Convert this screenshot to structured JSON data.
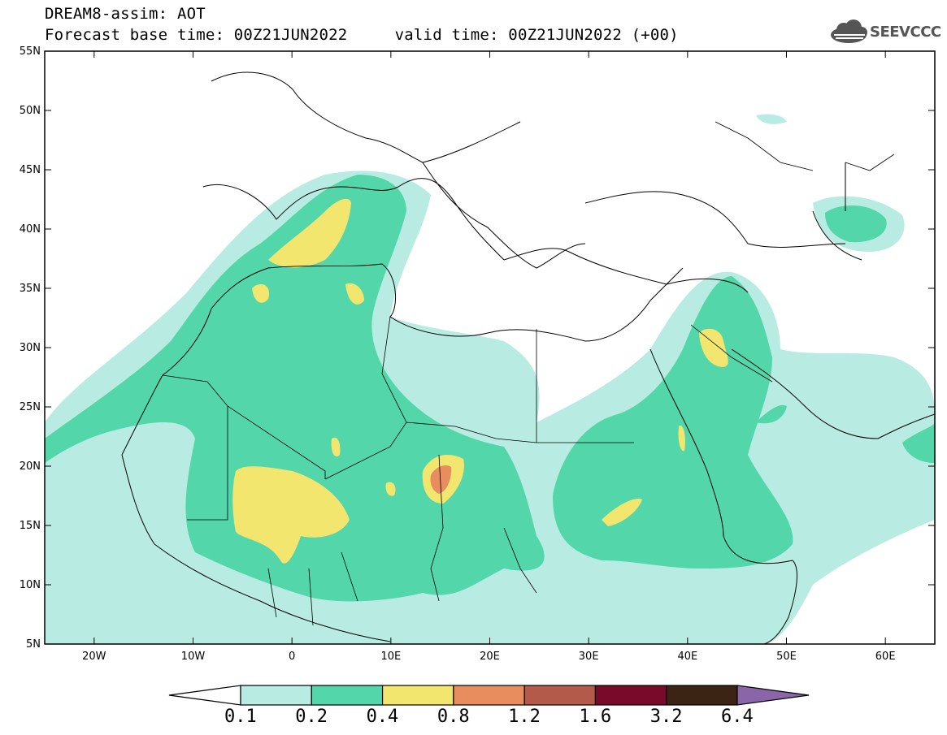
{
  "header": {
    "model_line": "DREAM8-assim: AOT",
    "time_line": "Forecast base time: 00Z21JUN2022     valid time: 00Z21JUN2022 (+00)",
    "logo_text": "SEEVCCC",
    "logo_icon": "cloud-icon"
  },
  "map": {
    "lon_range": [
      -25,
      65
    ],
    "lat_range": [
      5,
      55
    ],
    "lat_ticks": [
      "5N",
      "10N",
      "15N",
      "20N",
      "25N",
      "30N",
      "35N",
      "40N",
      "45N",
      "50N",
      "55N"
    ],
    "lon_ticks": [
      "20W",
      "10W",
      "0",
      "10E",
      "20E",
      "30E",
      "40E",
      "50E",
      "60E"
    ]
  },
  "colorbar": {
    "labels": [
      "0.1",
      "0.2",
      "0.4",
      "0.8",
      "1.2",
      "1.6",
      "3.2",
      "6.4"
    ],
    "colors": [
      "#ffffff",
      "#b8ece2",
      "#52d6aa",
      "#f2e66e",
      "#e88e5e",
      "#b45a4a",
      "#7a0a2a",
      "#3c2414",
      "#8a66a8"
    ]
  }
}
